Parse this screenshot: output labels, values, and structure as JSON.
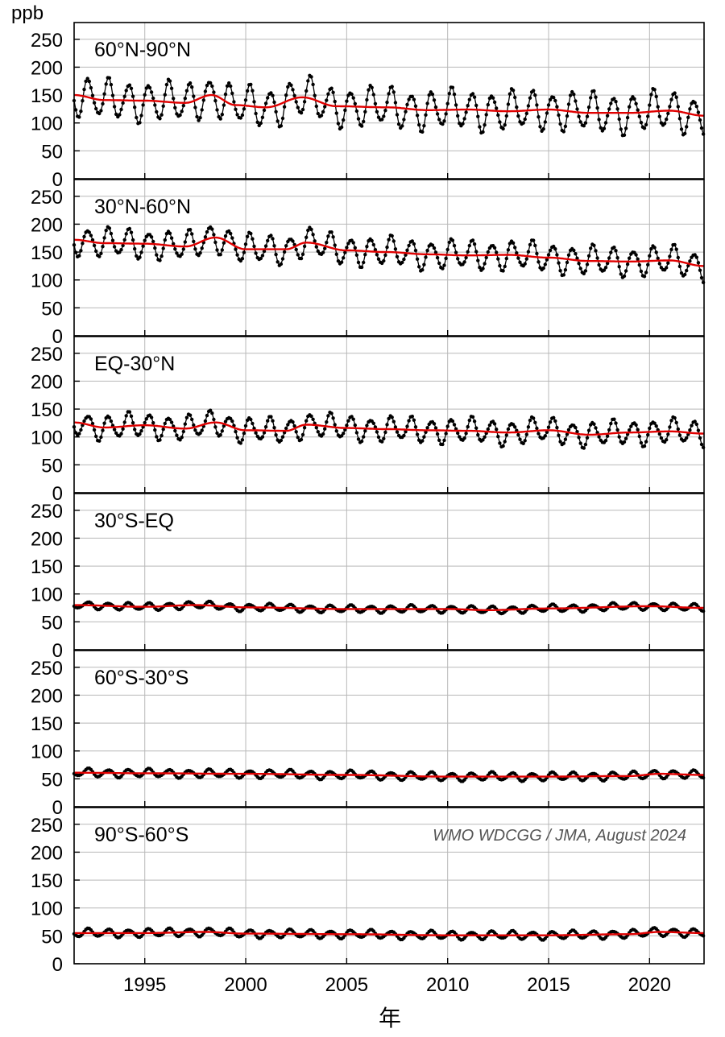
{
  "figure": {
    "y_unit": "ppb",
    "x_axis_label": "年",
    "credit": "WMO WDCGG / JMA, August 2024"
  },
  "colors": {
    "monthly_series": "#000000",
    "trend_series": "#e00000",
    "grid": "#b8b8b8"
  },
  "chart_data": [
    {
      "type": "line",
      "title": "60°N-90°N",
      "ylim": [
        0,
        280
      ],
      "yticks": [
        0,
        50,
        100,
        150,
        200,
        250
      ],
      "xlim": [
        1991.5,
        2022.7
      ],
      "xticks": [
        1995,
        2000,
        2005,
        2010,
        2015,
        2020
      ],
      "grid": true,
      "series": [
        {
          "style": "monthly",
          "x_start": 1991.5,
          "x_step": 0.08333,
          "pattern": "sinusoidal seasonal cycle",
          "approx_amplitude": 38,
          "approx_min": 85,
          "approx_max": 180
        },
        {
          "style": "trend",
          "x": [
            1991.5,
            1993,
            1995,
            1997,
            1998.3,
            1999.5,
            2001,
            2002.8,
            2004.5,
            2007,
            2009,
            2011,
            2013,
            2015,
            2017,
            2019,
            2021,
            2022.7
          ],
          "y": [
            150,
            141,
            140,
            136,
            150,
            132,
            128,
            146,
            130,
            128,
            123,
            124,
            121,
            124,
            118,
            118,
            122,
            113
          ]
        }
      ]
    },
    {
      "type": "line",
      "title": "30°N-60°N",
      "ylim": [
        0,
        280
      ],
      "yticks": [
        0,
        50,
        100,
        150,
        200,
        250
      ],
      "xlim": [
        1991.5,
        2022.7
      ],
      "xticks": [
        1995,
        2000,
        2005,
        2010,
        2015,
        2020
      ],
      "grid": true,
      "series": [
        {
          "style": "monthly",
          "x_start": 1991.5,
          "x_step": 0.08333,
          "pattern": "sinusoidal seasonal cycle",
          "approx_amplitude": 28,
          "approx_min": 105,
          "approx_max": 200
        },
        {
          "style": "trend",
          "x": [
            1991.5,
            1993,
            1995,
            1997,
            1998.5,
            2000,
            2002,
            2003,
            2005,
            2007,
            2009,
            2011,
            2013,
            2015,
            2017,
            2019,
            2021,
            2022.7
          ],
          "y": [
            172,
            166,
            165,
            160,
            176,
            155,
            155,
            167,
            153,
            150,
            146,
            144,
            145,
            140,
            134,
            133,
            135,
            125
          ]
        }
      ]
    },
    {
      "type": "line",
      "title": "EQ-30°N",
      "ylim": [
        0,
        280
      ],
      "yticks": [
        0,
        50,
        100,
        150,
        200,
        250
      ],
      "xlim": [
        1991.5,
        2022.7
      ],
      "xticks": [
        1995,
        2000,
        2005,
        2010,
        2015,
        2020
      ],
      "grid": true,
      "series": [
        {
          "style": "monthly",
          "x_start": 1991.5,
          "x_step": 0.08333,
          "pattern": "sinusoidal seasonal cycle",
          "approx_amplitude": 24,
          "approx_min": 78,
          "approx_max": 160
        },
        {
          "style": "trend",
          "x": [
            1991.5,
            1993,
            1995,
            1997,
            1998.5,
            2000,
            2002,
            2003,
            2005,
            2007,
            2009,
            2011,
            2013,
            2015,
            2017,
            2019,
            2021,
            2022.7
          ],
          "y": [
            126,
            117,
            121,
            115,
            126,
            112,
            111,
            122,
            116,
            114,
            112,
            111,
            108,
            112,
            104,
            108,
            110,
            106
          ]
        }
      ]
    },
    {
      "type": "line",
      "title": "30°S-EQ",
      "ylim": [
        0,
        280
      ],
      "yticks": [
        0,
        50,
        100,
        150,
        200,
        250
      ],
      "xlim": [
        1991.5,
        2022.7
      ],
      "xticks": [
        1995,
        2000,
        2005,
        2010,
        2015,
        2020
      ],
      "grid": true,
      "series": [
        {
          "style": "monthly",
          "x_start": 1991.5,
          "x_step": 0.08333,
          "pattern": "sinusoidal seasonal cycle",
          "approx_amplitude": 7,
          "approx_min": 62,
          "approx_max": 95
        },
        {
          "style": "trend",
          "x": [
            1991.5,
            1995,
            1997.5,
            2000,
            2005,
            2010,
            2012,
            2015,
            2020,
            2022.7
          ],
          "y": [
            80,
            77,
            80,
            76,
            73,
            73,
            71,
            74,
            78,
            75
          ]
        }
      ]
    },
    {
      "type": "line",
      "title": "60°S-30°S",
      "ylim": [
        0,
        280
      ],
      "yticks": [
        0,
        50,
        100,
        150,
        200,
        250
      ],
      "xlim": [
        1991.5,
        2022.7
      ],
      "xticks": [
        1995,
        2000,
        2005,
        2010,
        2015,
        2020
      ],
      "grid": true,
      "series": [
        {
          "style": "monthly",
          "x_start": 1991.5,
          "x_step": 0.08333,
          "pattern": "sinusoidal seasonal cycle",
          "approx_amplitude": 8,
          "approx_min": 45,
          "approx_max": 70
        },
        {
          "style": "trend",
          "x": [
            1991.5,
            1995,
            2000,
            2005,
            2010,
            2015,
            2019,
            2020.5,
            2022.7
          ],
          "y": [
            61,
            60,
            59,
            57,
            54,
            54,
            55,
            59,
            57
          ]
        }
      ]
    },
    {
      "type": "line",
      "title": "90°S-60°S",
      "ylim": [
        0,
        280
      ],
      "yticks": [
        0,
        50,
        100,
        150,
        200,
        250
      ],
      "xlim": [
        1991.5,
        2022.7
      ],
      "xticks": [
        1995,
        2000,
        2005,
        2010,
        2015,
        2020
      ],
      "grid": true,
      "series": [
        {
          "style": "monthly",
          "x_start": 1991.5,
          "x_step": 0.08333,
          "pattern": "sinusoidal seasonal cycle",
          "approx_amplitude": 8,
          "approx_min": 42,
          "approx_max": 70
        },
        {
          "style": "trend",
          "x": [
            1991.5,
            1995,
            1998,
            2000,
            2005,
            2010,
            2015,
            2019,
            2020.5,
            2022.7
          ],
          "y": [
            55,
            55,
            57,
            54,
            53,
            51,
            51,
            53,
            57,
            55
          ]
        }
      ]
    }
  ]
}
